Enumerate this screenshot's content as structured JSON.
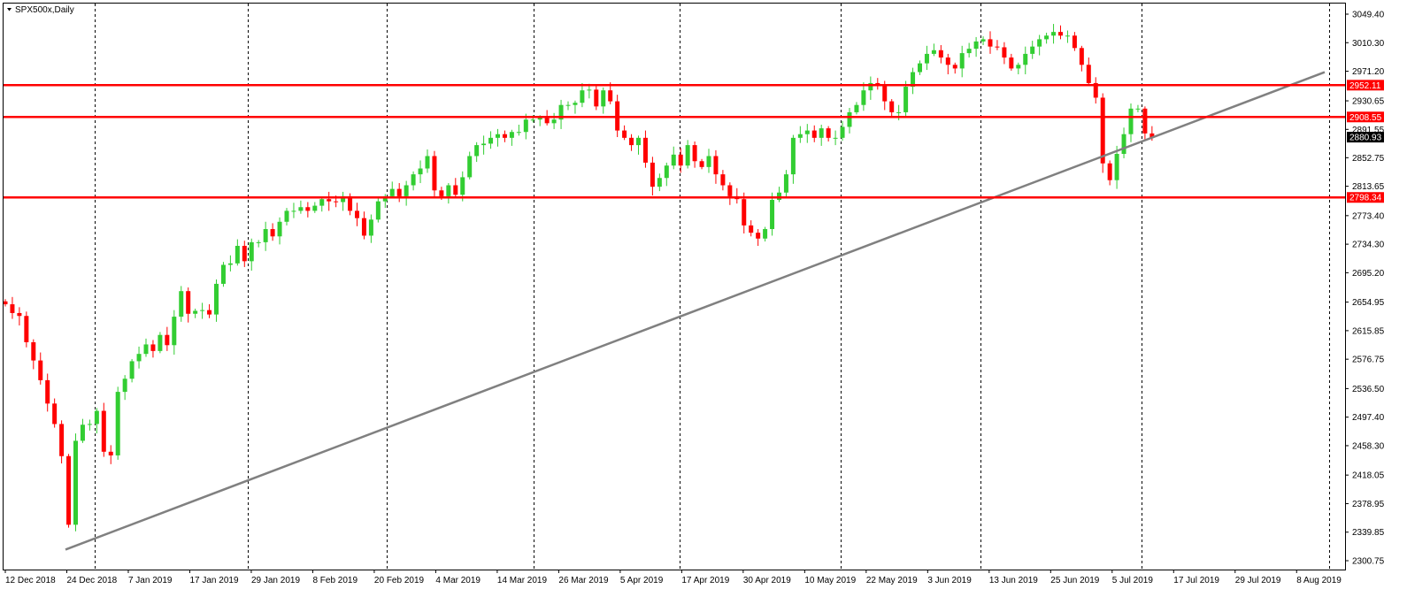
{
  "header": {
    "symbol_title": "SPX500x,Daily"
  },
  "chart_data": {
    "type": "candlestick",
    "title": "SPX500x,Daily",
    "ylim": [
      2300.75,
      3049.4
    ],
    "y_ticks": [
      "3049.40",
      "3010.30",
      "2971.20",
      "2930.65",
      "2891.55",
      "2852.75",
      "2813.65",
      "2773.40",
      "2734.30",
      "2695.20",
      "2654.95",
      "2615.85",
      "2576.75",
      "2536.50",
      "2497.40",
      "2458.30",
      "2418.05",
      "2378.95",
      "2339.85",
      "2300.75"
    ],
    "x_ticks": [
      "12 Dec 2018",
      "24 Dec 2018",
      "7 Jan 2019",
      "17 Jan 2019",
      "29 Jan 2019",
      "8 Feb 2019",
      "20 Feb 2019",
      "4 Mar 2019",
      "14 Mar 2019",
      "26 Mar 2019",
      "5 Apr 2019",
      "17 Apr 2019",
      "30 Apr 2019",
      "10 May 2019",
      "22 May 2019",
      "3 Jun 2019",
      "13 Jun 2019",
      "25 Jun 2019",
      "5 Jul 2019",
      "17 Jul 2019",
      "29 Jul 2019",
      "8 Aug 2019"
    ],
    "close_series": [
      2652,
      2640,
      2636,
      2600,
      2575,
      2548,
      2516,
      2488,
      2444,
      2350,
      2465,
      2487,
      2488,
      2506,
      2450,
      2445,
      2532,
      2550,
      2574,
      2584,
      2597,
      2588,
      2610,
      2596,
      2635,
      2670,
      2639,
      2643,
      2644,
      2638,
      2680,
      2706,
      2708,
      2732,
      2711,
      2737,
      2737,
      2755,
      2745,
      2765,
      2780,
      2780,
      2785,
      2780,
      2787,
      2796,
      2793,
      2792,
      2800,
      2780,
      2770,
      2746,
      2768,
      2793,
      2800,
      2810,
      2800,
      2815,
      2830,
      2838,
      2855,
      2808,
      2800,
      2815,
      2802,
      2826,
      2855,
      2870,
      2872,
      2880,
      2885,
      2880,
      2888,
      2888,
      2905,
      2905,
      2907,
      2900,
      2905,
      2925,
      2925,
      2928,
      2945,
      2946,
      2923,
      2945,
      2930,
      2890,
      2880,
      2870,
      2880,
      2846,
      2813,
      2825,
      2842,
      2857,
      2842,
      2870,
      2848,
      2840,
      2855,
      2830,
      2815,
      2800,
      2796,
      2760,
      2750,
      2742,
      2755,
      2795,
      2805,
      2830,
      2880,
      2885,
      2890,
      2880,
      2893,
      2880,
      2880,
      2895,
      2915,
      2925,
      2945,
      2955,
      2953,
      2930,
      2915,
      2915,
      2950,
      2970,
      2982,
      2995,
      3000,
      2990,
      2980,
      2975,
      2996,
      3002,
      3012,
      3015,
      3005,
      3004,
      2990,
      2975,
      2980,
      2995,
      3005,
      3015,
      3020,
      3025,
      3020,
      3020,
      3003,
      2980,
      2955,
      2935,
      2845,
      2822,
      2858,
      2885,
      2920,
      2920,
      2886,
      2880
    ]
  },
  "levels": [
    {
      "price": 2952.11,
      "label": "2952.11",
      "color": "#ff0000"
    },
    {
      "price": 2908.55,
      "label": "2908.55",
      "color": "#ff0000"
    },
    {
      "price": 2798.34,
      "label": "2798.34",
      "color": "#ff0000"
    }
  ],
  "current_price": {
    "price": 2880.93,
    "label": "2880.93"
  },
  "trendline": {
    "start_price": 2316,
    "end_price": 2970
  },
  "colors": {
    "bull": "#32cd32",
    "bear": "#ff0000",
    "grid": "#000000",
    "trendline": "#808080",
    "level": "#ff0000"
  }
}
